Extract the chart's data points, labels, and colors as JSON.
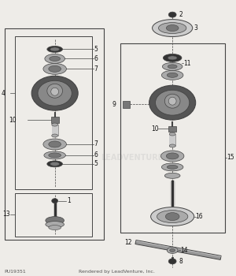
{
  "bg_color": "#eeece8",
  "title_bottom_left": "PU19351",
  "title_bottom_right": "Rendered by LeadVenture, Inc.",
  "watermark": "LEADVENTURE",
  "line_color": "#444444",
  "dark_part": "#333333",
  "mid_part": "#777777",
  "light_part": "#aaaaaa",
  "lighter_part": "#cccccc",
  "label_color": "#111111",
  "label_fs": 5.5
}
